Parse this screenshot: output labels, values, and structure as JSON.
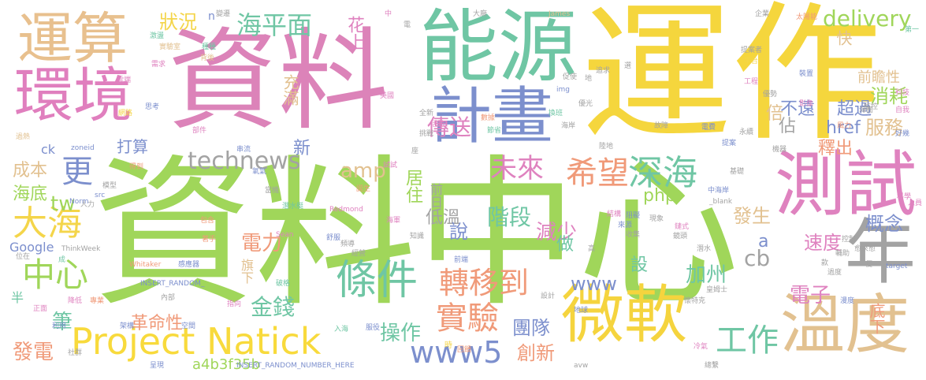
{
  "words": [
    {
      "text": "資料中心",
      "color": "#a0d65a"
    },
    {
      "text": "運作",
      "color": "#f5d63d"
    },
    {
      "text": "資料",
      "color": "#dc83b9"
    },
    {
      "text": "能源",
      "color": "#6fc6a4"
    },
    {
      "text": "運算",
      "color": "#e8c08e"
    },
    {
      "text": "環境",
      "color": "#e07fbe"
    },
    {
      "text": "計畫",
      "color": "#7c8fcd"
    },
    {
      "text": "測試",
      "color": "#df82bf"
    },
    {
      "text": "年",
      "color": "#a3a3a3"
    },
    {
      "text": "溫度",
      "color": "#e2c190"
    },
    {
      "text": "微軟",
      "color": "#f5d43e"
    },
    {
      "text": "Project Natick",
      "color": "#f8da3c"
    },
    {
      "text": "條件",
      "color": "#6fc6a4"
    },
    {
      "text": "深海",
      "color": "#6fc6a4"
    },
    {
      "text": "希望",
      "color": "#f09a79"
    },
    {
      "text": "大海",
      "color": "#f4d54a"
    },
    {
      "text": "中心",
      "color": "#a0d65a"
    },
    {
      "text": "實驗",
      "color": "#f09a79"
    },
    {
      "text": "轉移到",
      "color": "#f09a79"
    },
    {
      "text": "未來",
      "color": "#df82bf"
    },
    {
      "text": "www5",
      "color": "#7c8fcd"
    },
    {
      "text": "工作",
      "color": "#6fc6a4"
    },
    {
      "text": "更",
      "color": "#7c8fcd"
    },
    {
      "text": "technews",
      "color": "#a3a3a3"
    },
    {
      "text": "傳送",
      "color": "#df82bf"
    },
    {
      "text": "海平面",
      "color": "#6fc6a4"
    },
    {
      "text": "delivery",
      "color": "#a0d65a"
    },
    {
      "text": "服務",
      "color": "#e2c190"
    },
    {
      "text": "消耗",
      "color": "#a0d65a"
    },
    {
      "text": "超過",
      "color": "#7c8fcd"
    },
    {
      "text": "不遠",
      "color": "#7c8fcd"
    },
    {
      "text": "概念",
      "color": "#7c8fcd"
    },
    {
      "text": "速度",
      "color": "#df82bf"
    },
    {
      "text": "發生",
      "color": "#e2c190"
    },
    {
      "text": "釋出",
      "color": "#f09a79"
    },
    {
      "text": "電子",
      "color": "#df82bf"
    },
    {
      "text": "加州",
      "color": "#6fc6a4"
    },
    {
      "text": "www",
      "color": "#7c8fcd"
    },
    {
      "text": "階段",
      "color": "#6fc6a4"
    },
    {
      "text": "減少",
      "color": "#df82bf"
    },
    {
      "text": "金錢",
      "color": "#6fc6a4"
    },
    {
      "text": "電力",
      "color": "#f09a79"
    },
    {
      "text": "操作",
      "color": "#6fc6a4"
    },
    {
      "text": "團隊",
      "color": "#7c8fcd"
    },
    {
      "text": "創新",
      "color": "#f09a79"
    },
    {
      "text": "發電",
      "color": "#f09a79"
    },
    {
      "text": "筆",
      "color": "#6fc6a4"
    },
    {
      "text": "tw",
      "color": "#a0d65a"
    },
    {
      "text": "amp",
      "color": "#e2c190"
    },
    {
      "text": "php",
      "color": "#a0d65a"
    },
    {
      "text": "cb",
      "color": "#a3a3a3"
    },
    {
      "text": "居住",
      "color": "#a0d65a"
    },
    {
      "text": "低溫",
      "color": "#a3a3a3"
    },
    {
      "text": "說",
      "color": "#7c8fcd"
    },
    {
      "text": "設",
      "color": "#6fc6a4"
    },
    {
      "text": "做",
      "color": "#6fc6a4"
    },
    {
      "text": "革命性",
      "color": "#f09a79"
    },
    {
      "text": "底下",
      "color": "#f09a79"
    },
    {
      "text": "成本",
      "color": "#e2c190"
    },
    {
      "text": "海底",
      "color": "#a0d65a"
    },
    {
      "text": "打算",
      "color": "#7c8fcd"
    },
    {
      "text": "前瞻性",
      "color": "#e2c190"
    },
    {
      "text": "快",
      "color": "#e2c190"
    },
    {
      "text": "href",
      "color": "#7c8fcd"
    },
    {
      "text": "狀況",
      "color": "#f4d54a"
    },
    {
      "text": "花上",
      "color": "#df82bf"
    },
    {
      "text": "充滿",
      "color": "#e2c190"
    },
    {
      "text": "倍",
      "color": "#e2c190"
    },
    {
      "text": "佔",
      "color": "#a3a3a3"
    },
    {
      "text": "新",
      "color": "#7c8fcd"
    },
    {
      "text": "a4b3f35b",
      "color": "#a0d65a"
    },
    {
      "text": "Google",
      "color": "#7c8fcd"
    },
    {
      "text": "旗下",
      "color": "#e2c190"
    },
    {
      "text": "前日",
      "color": "#a3a3a3"
    },
    {
      "text": "半",
      "color": "#6fc6a4"
    },
    {
      "text": "a",
      "color": "#7c8fcd"
    },
    {
      "text": "ck",
      "color": "#7c8fcd"
    },
    {
      "text": "太陽能",
      "color": "#f09a79"
    },
    {
      "text": "第一",
      "color": "#6fc6a4"
    },
    {
      "text": "企業",
      "color": "#a3a3a3"
    },
    {
      "text": "提案者",
      "color": "#a3a3a3"
    },
    {
      "text": "平台",
      "color": "#f4d54a"
    },
    {
      "text": "裝置",
      "color": "#7c8fcd"
    },
    {
      "text": "工程",
      "color": "#df82bf"
    },
    {
      "text": "影像",
      "color": "#df82bf"
    },
    {
      "text": "科技",
      "color": "#df82bf"
    },
    {
      "text": "風力",
      "color": "#f09a79"
    },
    {
      "text": "監控",
      "color": "#a3a3a3"
    },
    {
      "text": "自我",
      "color": "#df82bf"
    },
    {
      "text": "好幾",
      "color": "#7c8fcd"
    },
    {
      "text": "優勢",
      "color": "#a3a3a3"
    },
    {
      "text": "James",
      "color": "#e2c190"
    },
    {
      "text": "大廠",
      "color": "#a3a3a3"
    },
    {
      "text": "電",
      "color": "#a3a3a3"
    },
    {
      "text": "中",
      "color": "#df82bf"
    },
    {
      "text": "n",
      "color": "#7c8fcd"
    },
    {
      "text": "變遷",
      "color": "#a3a3a3"
    },
    {
      "text": "激盪",
      "color": "#6fc6a4"
    },
    {
      "text": "實驗室",
      "color": "#e2c190"
    },
    {
      "text": "種種",
      "color": "#6fc6a4"
    },
    {
      "text": "背後",
      "color": "#e2c190"
    },
    {
      "text": "需求",
      "color": "#df82bf"
    },
    {
      "text": "雲端",
      "color": "#df82bf"
    },
    {
      "text": "思考",
      "color": "#7c8fcd"
    },
    {
      "text": "網路",
      "color": "#f4d54a"
    },
    {
      "text": "部件",
      "color": "#df82bf"
    },
    {
      "text": "串流",
      "color": "#7c8fcd"
    },
    {
      "text": "過熱",
      "color": "#e2c190"
    },
    {
      "text": "zoneid",
      "color": "#7c8fcd"
    },
    {
      "text": "得到",
      "color": "#f09a79"
    },
    {
      "text": "模型",
      "color": "#a3a3a3"
    },
    {
      "text": "氧氣",
      "color": "#7c8fcd"
    },
    {
      "text": "src",
      "color": "#7c8fcd"
    },
    {
      "text": "Norm",
      "color": "#7c8fcd"
    },
    {
      "text": "人力",
      "color": "#a3a3a3"
    },
    {
      "text": "潛水艇",
      "color": "#6fc6a4"
    },
    {
      "text": "當機",
      "color": "#a3a3a3"
    },
    {
      "text": "誕生",
      "color": "#f09a79"
    },
    {
      "text": "Redmond",
      "color": "#df82bf"
    },
    {
      "text": "海軍",
      "color": "#df82bf"
    },
    {
      "text": "包含",
      "color": "#f09a79"
    },
    {
      "text": "Sean",
      "color": "#df82bf"
    },
    {
      "text": "舒服",
      "color": "#7c8fcd"
    },
    {
      "text": "頻導",
      "color": "#a3a3a3"
    },
    {
      "text": "經營",
      "color": "#a3a3a3"
    },
    {
      "text": "著手",
      "color": "#f09a79"
    },
    {
      "text": "ThinkWeek",
      "color": "#a3a3a3"
    },
    {
      "text": "位在",
      "color": "#a3a3a3"
    },
    {
      "text": "成",
      "color": "#6fc6a4"
    },
    {
      "text": "Whitaker",
      "color": "#f09a79"
    },
    {
      "text": "感應器",
      "color": "#7c8fcd"
    },
    {
      "text": "INSERT_RANDOM_",
      "color": "#7c8fcd"
    },
    {
      "text": "破格",
      "color": "#6fc6a4"
    },
    {
      "text": "內部",
      "color": "#a3a3a3"
    },
    {
      "text": "指向",
      "color": "#df82bf"
    },
    {
      "text": "正面",
      "color": "#df82bf"
    },
    {
      "text": "降低",
      "color": "#df82bf"
    },
    {
      "text": "專業",
      "color": "#f09a79"
    },
    {
      "text": "利用",
      "color": "#7c8fcd"
    },
    {
      "text": "架構",
      "color": "#7c8fcd"
    },
    {
      "text": "空間",
      "color": "#7c8fcd"
    },
    {
      "text": "入海",
      "color": "#6fc6a4"
    },
    {
      "text": "服役",
      "color": "#7c8fcd"
    },
    {
      "text": "社群",
      "color": "#a3a3a3"
    },
    {
      "text": "呈現",
      "color": "#7c8fcd"
    },
    {
      "text": "INSERT_RANDOM_NUMBER_HERE",
      "color": "#7c8fcd"
    },
    {
      "text": "回饋",
      "color": "#f09a79"
    },
    {
      "text": "時",
      "color": "#f4d54a"
    },
    {
      "text": "avw",
      "color": "#a3a3a3"
    },
    {
      "text": "總繫",
      "color": "#a3a3a3"
    },
    {
      "text": "冷氣",
      "color": "#df82bf"
    },
    {
      "text": "設計",
      "color": "#a3a3a3"
    },
    {
      "text": "地球",
      "color": "#7c8fcd"
    },
    {
      "text": "皇姆士",
      "color": "#a3a3a3"
    },
    {
      "text": "懷特克",
      "color": "#a3a3a3"
    },
    {
      "text": "漫度",
      "color": "#7c8fcd"
    },
    {
      "text": "過度",
      "color": "#a3a3a3"
    },
    {
      "text": "款",
      "color": "#a3a3a3"
    },
    {
      "text": "輔助",
      "color": "#a3a3a3"
    },
    {
      "text": "控制",
      "color": "#a3a3a3"
    },
    {
      "text": "target",
      "color": "#7c8fcd"
    },
    {
      "text": "人員",
      "color": "#df82bf"
    },
    {
      "text": "科學",
      "color": "#df82bf"
    },
    {
      "text": "中海岸",
      "color": "#7c8fcd"
    },
    {
      "text": "_blank",
      "color": "#a3a3a3"
    },
    {
      "text": "基礎",
      "color": "#a3a3a3"
    },
    {
      "text": "機器",
      "color": "#a3a3a3"
    },
    {
      "text": "提案",
      "color": "#7c8fcd"
    },
    {
      "text": "永續",
      "color": "#a3a3a3"
    },
    {
      "text": "電費",
      "color": "#7c8fcd"
    },
    {
      "text": "故障",
      "color": "#a3a3a3"
    },
    {
      "text": "陸地",
      "color": "#a3a3a3"
    },
    {
      "text": "海岸",
      "color": "#a3a3a3"
    },
    {
      "text": "挑戰",
      "color": "#a3a3a3"
    },
    {
      "text": "節省",
      "color": "#6fc6a4"
    },
    {
      "text": "數據",
      "color": "#f09a79"
    },
    {
      "text": "全新",
      "color": "#a3a3a3"
    },
    {
      "text": "活動",
      "color": "#df82bf"
    },
    {
      "text": "美國",
      "color": "#df82bf"
    },
    {
      "text": "img",
      "color": "#7c8fcd"
    },
    {
      "text": "促使",
      "color": "#a3a3a3"
    },
    {
      "text": "換班",
      "color": "#6fc6a4"
    },
    {
      "text": "優光",
      "color": "#a3a3a3"
    },
    {
      "text": "追求",
      "color": "#a3a3a3"
    },
    {
      "text": "選",
      "color": "#a3a3a3"
    },
    {
      "text": "地",
      "color": "#a3a3a3"
    },
    {
      "text": "海面",
      "color": "#a3a3a3"
    },
    {
      "text": "試試",
      "color": "#df82bf"
    },
    {
      "text": "座",
      "color": "#a3a3a3"
    },
    {
      "text": "結構",
      "color": "#df82bf"
    },
    {
      "text": "阻礙",
      "color": "#7c8fcd"
    },
    {
      "text": "現象",
      "color": "#a3a3a3"
    },
    {
      "text": "來源",
      "color": "#7c8fcd"
    },
    {
      "text": "收集",
      "color": "#a3a3a3"
    },
    {
      "text": "鏡頭",
      "color": "#a3a3a3"
    },
    {
      "text": "鏈式",
      "color": "#df82bf"
    },
    {
      "text": "知識",
      "color": "#a3a3a3"
    },
    {
      "text": "高",
      "color": "#a3a3a3"
    },
    {
      "text": "愈來愈",
      "color": "#a3a3a3"
    },
    {
      "text": "前端",
      "color": "#7c8fcd"
    },
    {
      "text": "便",
      "color": "#a3a3a3"
    },
    {
      "text": "潛水",
      "color": "#a3a3a3"
    }
  ]
}
